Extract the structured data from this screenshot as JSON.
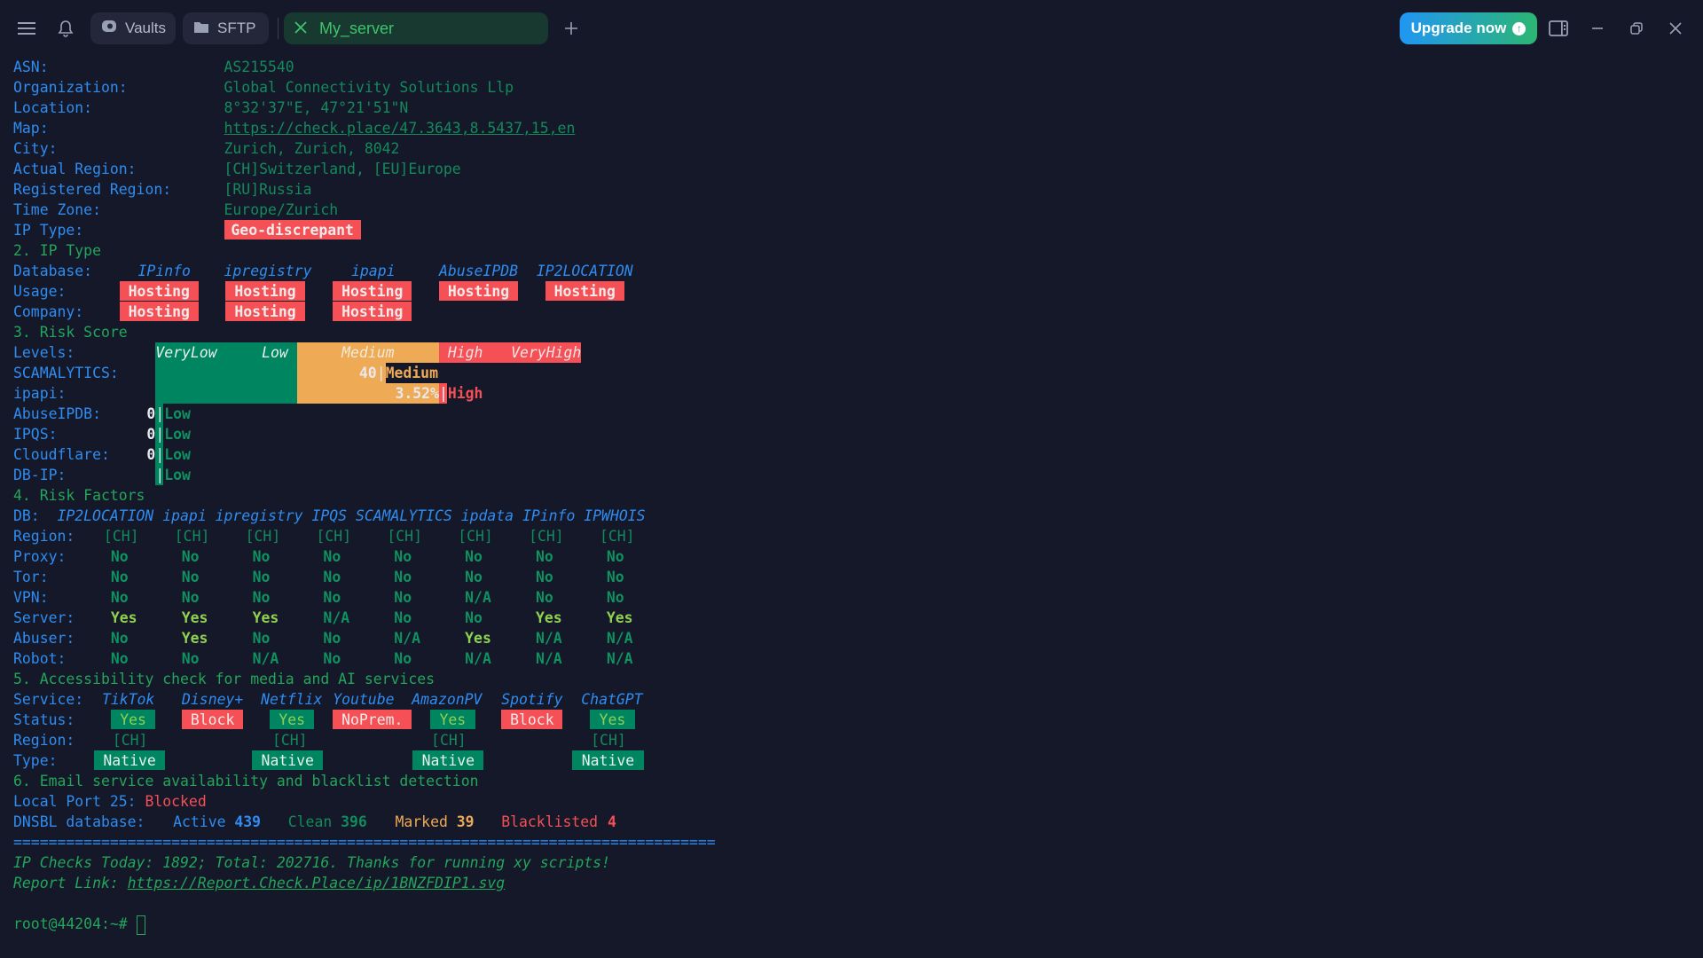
{
  "topbar": {
    "vaults_label": "Vaults",
    "sftp_label": "SFTP",
    "active_tab": "My_server",
    "upgrade_label": "Upgrade now"
  },
  "colors": {
    "background": "#141829",
    "label": "#2f8cf0",
    "value": "#138a5c",
    "section": "#23a55a",
    "red": "#f45056",
    "orange": "#eeaa55",
    "yes": "#8fd14f",
    "teal": "#008561"
  },
  "info": [
    {
      "label": "ASN:",
      "value": "AS215540"
    },
    {
      "label": "Organization:",
      "value": "Global Connectivity Solutions Llp"
    },
    {
      "label": "Location:",
      "value": "8°32'37\"E, 47°21'51\"N"
    },
    {
      "label": "Map:",
      "value": "https://check.place/47.3643,8.5437,15,en"
    },
    {
      "label": "City:",
      "value": "Zurich, Zurich, 8042"
    },
    {
      "label": "Actual Region:",
      "value": "[CH]Switzerland, [EU]Europe"
    },
    {
      "label": "Registered Region:",
      "value": "[RU]Russia"
    },
    {
      "label": "Time Zone:",
      "value": "Europe/Zurich"
    },
    {
      "label": "IP Type:",
      "value": "Geo-discrepant"
    }
  ],
  "ip_type": {
    "title": "2. IP Type",
    "db_label": "Database:",
    "usage_label": "Usage:",
    "company_label": "Company:",
    "databases": [
      "IPinfo",
      "ipregistry",
      "ipapi",
      "AbuseIPDB",
      "IP2LOCATION"
    ],
    "usage": [
      "Hosting",
      "Hosting",
      "Hosting",
      "Hosting",
      "Hosting"
    ],
    "company": [
      "Hosting",
      "Hosting",
      "Hosting"
    ]
  },
  "risk_score": {
    "title": "3. Risk Score",
    "levels_label": "Levels:",
    "levels": [
      "VeryLow",
      "Low",
      "Medium",
      "High",
      "VeryHigh"
    ],
    "scamalytics": {
      "label": "SCAMALYTICS:",
      "score": "40",
      "level": "Medium"
    },
    "ipapi": {
      "label": "ipapi:",
      "score": "3.52%",
      "level": "High"
    },
    "others": [
      {
        "label": "AbuseIPDB:",
        "score": "0",
        "level": "Low"
      },
      {
        "label": "IPQS:",
        "score": "0",
        "level": "Low"
      },
      {
        "label": "Cloudflare:",
        "score": "0",
        "level": "Low"
      },
      {
        "label": "DB-IP:",
        "score": "",
        "level": "Low"
      }
    ]
  },
  "risk_factors": {
    "title": "4. Risk Factors",
    "db_label": "DB:",
    "databases": [
      "IP2LOCATION",
      "ipapi",
      "ipregistry",
      "IPQS",
      "SCAMALYTICS",
      "ipdata",
      "IPinfo",
      "IPWHOIS"
    ],
    "rows": [
      {
        "label": "Region:",
        "values": [
          "[CH]",
          "[CH]",
          "[CH]",
          "[CH]",
          "[CH]",
          "[CH]",
          "[CH]",
          "[CH]"
        ]
      },
      {
        "label": "Proxy:",
        "values": [
          "No",
          "No",
          "No",
          "No",
          "No",
          "No",
          "No",
          "No"
        ]
      },
      {
        "label": "Tor:",
        "values": [
          "No",
          "No",
          "No",
          "No",
          "No",
          "No",
          "No",
          "No"
        ]
      },
      {
        "label": "VPN:",
        "values": [
          "No",
          "No",
          "No",
          "No",
          "No",
          "N/A",
          "No",
          "No"
        ]
      },
      {
        "label": "Server:",
        "values": [
          "Yes",
          "Yes",
          "Yes",
          "N/A",
          "No",
          "No",
          "Yes",
          "Yes"
        ]
      },
      {
        "label": "Abuser:",
        "values": [
          "No",
          "Yes",
          "No",
          "No",
          "N/A",
          "Yes",
          "N/A",
          "N/A"
        ]
      },
      {
        "label": "Robot:",
        "values": [
          "No",
          "No",
          "N/A",
          "No",
          "No",
          "N/A",
          "N/A",
          "N/A"
        ]
      }
    ]
  },
  "media": {
    "title": "5. Accessibility check for media and AI services",
    "service_label": "Service:",
    "status_label": "Status:",
    "region_label": "Region:",
    "type_label": "Type:",
    "services": [
      {
        "name": "TikTok",
        "status": "Yes",
        "region": "[CH]",
        "type": "Native"
      },
      {
        "name": "Disney+",
        "status": "Block",
        "region": "",
        "type": ""
      },
      {
        "name": "Netflix",
        "status": "Yes",
        "region": "[CH]",
        "type": "Native"
      },
      {
        "name": "Youtube",
        "status": "NoPrem.",
        "region": "",
        "type": ""
      },
      {
        "name": "AmazonPV",
        "status": "Yes",
        "region": "[CH]",
        "type": "Native"
      },
      {
        "name": "Spotify",
        "status": "Block",
        "region": "",
        "type": ""
      },
      {
        "name": "ChatGPT",
        "status": "Yes",
        "region": "[CH]",
        "type": "Native"
      }
    ]
  },
  "email": {
    "title": "6. Email service availability and blacklist detection",
    "port_label": "Local Port 25:",
    "port_status": "Blocked",
    "dnsbl_label": "DNSBL database:",
    "active_label": "Active",
    "active": "439",
    "clean_label": "Clean",
    "clean": "396",
    "marked_label": "Marked",
    "marked": "39",
    "blacklisted_label": "Blacklisted",
    "blacklisted": "4"
  },
  "footer": {
    "divider": "================================================================================",
    "checks": "IP Checks Today: 1892; Total: 202716. Thanks for running xy scripts!",
    "report_label": "Report Link: ",
    "report_link": "https://Report.Check.Place/ip/1BNZFDIP1.svg",
    "prompt": "root@44204:~# "
  }
}
